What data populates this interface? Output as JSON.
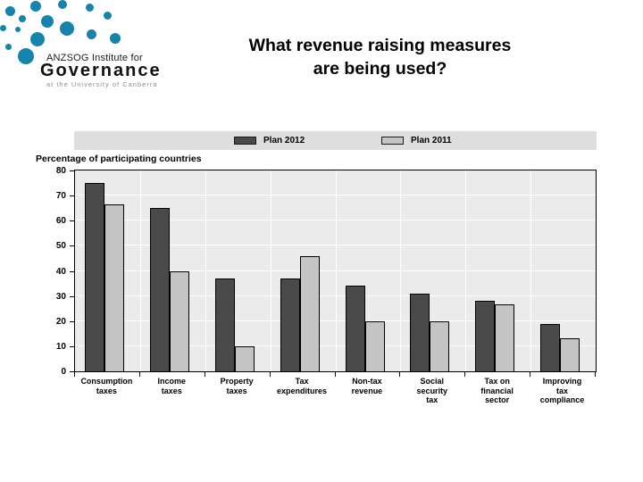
{
  "logo": {
    "line1": "ANZSOG Institute for",
    "line2": "Governance",
    "line3": "at the University of Canberra",
    "dot_color": "#1583ac"
  },
  "title": {
    "line1": "What revenue raising measures",
    "line2": "are being used?"
  },
  "chart_data": {
    "type": "bar",
    "axis_title": "Percentage of participating countries",
    "categories": [
      "Consumption\ntaxes",
      "Income\ntaxes",
      "Property\ntaxes",
      "Tax\nexpenditures",
      "Non-tax\nrevenue",
      "Social\nsecurity\ntax",
      "Tax on\nfinancial\nsector",
      "Improving\ntax\ncompliance"
    ],
    "series": [
      {
        "name": "Plan 2012",
        "color": "#4a4a4a",
        "values": [
          75,
          65,
          37,
          37,
          34,
          31,
          28,
          19
        ]
      },
      {
        "name": "Plan 2011",
        "color": "#c4c4c4",
        "values": [
          66.5,
          40,
          10,
          46,
          20,
          20,
          26.5,
          13
        ]
      }
    ],
    "ylim": [
      0,
      80
    ],
    "yticks": [
      80,
      70,
      60,
      50,
      40,
      30,
      20,
      10,
      0
    ],
    "grid": true,
    "grid_color": "#ffffff",
    "plot_bg": "#ebebeb",
    "legend_position": "top"
  }
}
